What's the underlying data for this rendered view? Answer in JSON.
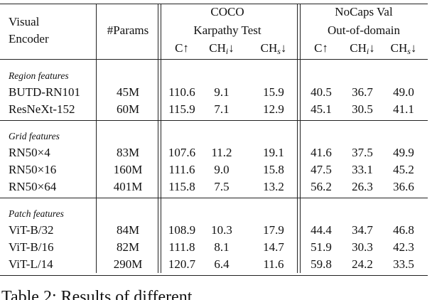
{
  "header": {
    "encoder": [
      "Visual",
      "Encoder"
    ],
    "params": "#Params",
    "coco": [
      "COCO",
      "Karpathy Test"
    ],
    "nocaps": [
      "NoCaps Val",
      "Out-of-domain"
    ],
    "metrics": [
      {
        "base": "C",
        "arrow": "↑"
      },
      {
        "base": "CH",
        "sub": "i",
        "arrow": "↓"
      },
      {
        "base": "CH",
        "sub": "s",
        "arrow": "↓"
      },
      {
        "base": "C",
        "arrow": "↑"
      },
      {
        "base": "CH",
        "sub": "i",
        "arrow": "↓"
      },
      {
        "base": "CH",
        "sub": "s",
        "arrow": "↓"
      }
    ]
  },
  "groups": [
    {
      "label": "Region features",
      "rows": [
        [
          "BUTD-RN101",
          "45M",
          "110.6",
          "9.1",
          "15.9",
          "40.5",
          "36.7",
          "49.0"
        ],
        [
          "ResNeXt-152",
          "60M",
          "115.9",
          "7.1",
          "12.9",
          "45.1",
          "30.5",
          "41.1"
        ]
      ]
    },
    {
      "label": "Grid features",
      "rows": [
        [
          "RN50×4",
          "83M",
          "107.6",
          "11.2",
          "19.1",
          "41.6",
          "37.5",
          "49.9"
        ],
        [
          "RN50×16",
          "160M",
          "111.6",
          "9.0",
          "15.8",
          "47.5",
          "33.1",
          "45.2"
        ],
        [
          "RN50×64",
          "401M",
          "115.8",
          "7.5",
          "13.2",
          "56.2",
          "26.3",
          "36.6"
        ]
      ]
    },
    {
      "label": "Patch features",
      "rows": [
        [
          "ViT-B/32",
          "84M",
          "108.9",
          "10.3",
          "17.9",
          "44.4",
          "34.7",
          "46.8"
        ],
        [
          "ViT-B/16",
          "82M",
          "111.8",
          "8.1",
          "14.7",
          "51.9",
          "30.3",
          "42.3"
        ],
        [
          "ViT-L/14",
          "290M",
          "120.7",
          "6.4",
          "11.6",
          "59.8",
          "24.2",
          "33.5"
        ]
      ]
    }
  ],
  "caption": "Table 2: Results of different"
}
